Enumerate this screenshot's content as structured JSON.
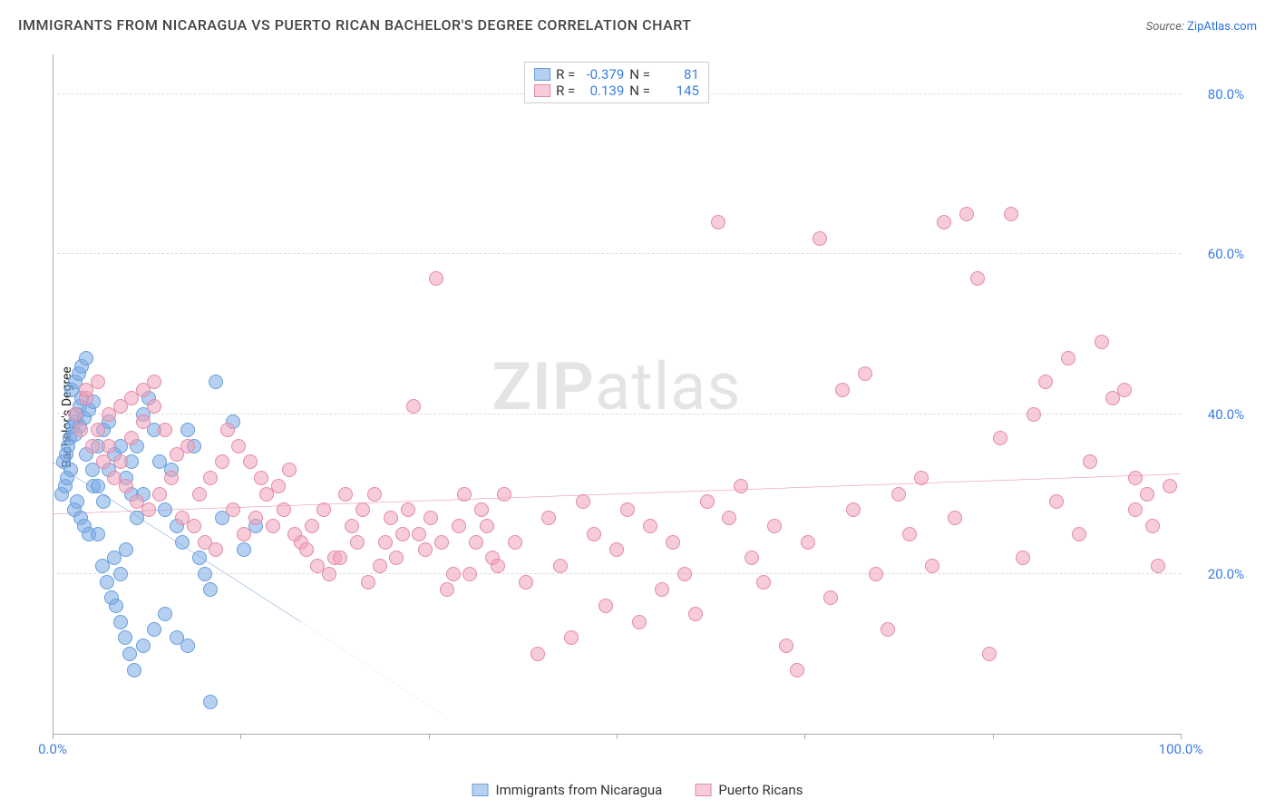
{
  "title": "IMMIGRANTS FROM NICARAGUA VS PUERTO RICAN BACHELOR'S DEGREE CORRELATION CHART",
  "source_label": "Source:",
  "source_name": "ZipAtlas.com",
  "watermark": {
    "bold": "ZIP",
    "rest": "atlas"
  },
  "chart": {
    "type": "scatter",
    "xlim": [
      0,
      100
    ],
    "ylim": [
      0,
      85
    ],
    "y_axis_label": "Bachelor's Degree",
    "y_ticks": [
      20,
      40,
      60,
      80
    ],
    "y_tick_labels": [
      "20.0%",
      "40.0%",
      "60.0%",
      "80.0%"
    ],
    "x_ticks": [
      0,
      16.67,
      33.33,
      50,
      66.67,
      83.33,
      100
    ],
    "x_tick_labels_shown": {
      "0": "0.0%",
      "100": "100.0%"
    },
    "grid_color": "#dddddd",
    "background_color": "#ffffff",
    "axis_color": "#aaaaaa",
    "tick_label_color": "#3b7ee0",
    "tick_label_fontsize": 15
  },
  "series": [
    {
      "id": "nicaragua",
      "label": "Immigrants from Nicaragua",
      "fill_color": "rgba(120,170,230,0.55)",
      "stroke_color": "#6a9fd8",
      "trend_color": "#1f5fbf",
      "trend_width": 2,
      "r_value": "-0.379",
      "n_value": "81",
      "trend": {
        "x1": 0,
        "y1": 34,
        "x2": 22,
        "y2": 14,
        "dash_to_x": 35,
        "dash_to_y": 2
      },
      "points": [
        [
          1.2,
          35
        ],
        [
          1.5,
          37
        ],
        [
          1.8,
          38.5
        ],
        [
          2.0,
          39
        ],
        [
          2.2,
          40
        ],
        [
          2.4,
          41
        ],
        [
          2.6,
          42
        ],
        [
          1.0,
          34
        ],
        [
          1.4,
          36
        ],
        [
          1.7,
          43
        ],
        [
          2.0,
          44
        ],
        [
          2.3,
          45
        ],
        [
          2.6,
          46
        ],
        [
          3.0,
          47
        ],
        [
          0.8,
          30
        ],
        [
          1.1,
          31
        ],
        [
          1.3,
          32
        ],
        [
          1.6,
          33
        ],
        [
          1.9,
          28
        ],
        [
          2.2,
          29
        ],
        [
          2.5,
          27
        ],
        [
          2.8,
          26
        ],
        [
          3.2,
          25
        ],
        [
          3.6,
          31
        ],
        [
          4.0,
          36
        ],
        [
          4.5,
          38
        ],
        [
          5.0,
          39
        ],
        [
          5.5,
          22
        ],
        [
          6.0,
          20
        ],
        [
          6.5,
          23
        ],
        [
          7.0,
          30
        ],
        [
          7.5,
          27
        ],
        [
          8.0,
          40
        ],
        [
          8.5,
          42
        ],
        [
          9.0,
          38
        ],
        [
          9.5,
          34
        ],
        [
          10.0,
          28
        ],
        [
          10.5,
          33
        ],
        [
          11.0,
          26
        ],
        [
          11.5,
          24
        ],
        [
          12.0,
          38
        ],
        [
          12.5,
          36
        ],
        [
          13.0,
          22
        ],
        [
          13.5,
          20
        ],
        [
          14.0,
          18
        ],
        [
          14.5,
          44
        ],
        [
          15.0,
          27
        ],
        [
          16.0,
          39
        ],
        [
          17.0,
          23
        ],
        [
          18.0,
          26
        ],
        [
          2.0,
          37.5
        ],
        [
          2.4,
          38.5
        ],
        [
          2.8,
          39.5
        ],
        [
          3.2,
          40.5
        ],
        [
          3.6,
          41.5
        ],
        [
          4.0,
          25
        ],
        [
          4.4,
          21
        ],
        [
          4.8,
          19
        ],
        [
          5.2,
          17
        ],
        [
          5.6,
          16
        ],
        [
          6.0,
          14
        ],
        [
          6.4,
          12
        ],
        [
          6.8,
          10
        ],
        [
          7.2,
          8
        ],
        [
          8.0,
          11
        ],
        [
          9.0,
          13
        ],
        [
          10.0,
          15
        ],
        [
          11.0,
          12
        ],
        [
          12.0,
          11
        ],
        [
          14.0,
          4
        ],
        [
          3.0,
          35
        ],
        [
          3.5,
          33
        ],
        [
          4.0,
          31
        ],
        [
          4.5,
          29
        ],
        [
          5.0,
          33
        ],
        [
          5.5,
          35
        ],
        [
          6.0,
          36
        ],
        [
          6.5,
          32
        ],
        [
          7.0,
          34
        ],
        [
          7.5,
          36
        ],
        [
          8.0,
          30
        ]
      ]
    },
    {
      "id": "puerto_rican",
      "label": "Puerto Ricans",
      "fill_color": "rgba(240,160,185,0.55)",
      "stroke_color": "#e08ca8",
      "trend_color": "#e04a80",
      "trend_width": 2,
      "r_value": "0.139",
      "n_value": "145",
      "trend": {
        "x1": 0,
        "y1": 27.5,
        "x2": 100,
        "y2": 32.5
      },
      "points": [
        [
          2,
          40
        ],
        [
          3,
          42
        ],
        [
          4,
          38
        ],
        [
          5,
          36
        ],
        [
          6,
          34
        ],
        [
          7,
          37
        ],
        [
          8,
          39
        ],
        [
          9,
          41
        ],
        [
          10,
          38
        ],
        [
          11,
          35
        ],
        [
          12,
          36
        ],
        [
          13,
          30
        ],
        [
          14,
          32
        ],
        [
          15,
          34
        ],
        [
          16,
          28
        ],
        [
          17,
          25
        ],
        [
          18,
          27
        ],
        [
          19,
          30
        ],
        [
          20,
          31
        ],
        [
          21,
          33
        ],
        [
          22,
          24
        ],
        [
          23,
          26
        ],
        [
          24,
          28
        ],
        [
          25,
          22
        ],
        [
          26,
          30
        ],
        [
          27,
          24
        ],
        [
          28,
          19
        ],
        [
          29,
          21
        ],
        [
          30,
          27
        ],
        [
          31,
          25
        ],
        [
          32,
          41
        ],
        [
          33,
          23
        ],
        [
          34,
          57
        ],
        [
          35,
          18
        ],
        [
          36,
          26
        ],
        [
          37,
          20
        ],
        [
          38,
          28
        ],
        [
          39,
          22
        ],
        [
          40,
          30
        ],
        [
          41,
          24
        ],
        [
          42,
          19
        ],
        [
          43,
          10
        ],
        [
          44,
          27
        ],
        [
          45,
          21
        ],
        [
          46,
          12
        ],
        [
          47,
          29
        ],
        [
          48,
          25
        ],
        [
          49,
          16
        ],
        [
          50,
          23
        ],
        [
          51,
          28
        ],
        [
          52,
          14
        ],
        [
          53,
          26
        ],
        [
          54,
          18
        ],
        [
          55,
          24
        ],
        [
          56,
          20
        ],
        [
          57,
          15
        ],
        [
          58,
          29
        ],
        [
          59,
          64
        ],
        [
          60,
          27
        ],
        [
          61,
          31
        ],
        [
          62,
          22
        ],
        [
          63,
          19
        ],
        [
          64,
          26
        ],
        [
          65,
          11
        ],
        [
          66,
          8
        ],
        [
          67,
          24
        ],
        [
          68,
          62
        ],
        [
          69,
          17
        ],
        [
          70,
          43
        ],
        [
          71,
          28
        ],
        [
          72,
          45
        ],
        [
          73,
          20
        ],
        [
          74,
          13
        ],
        [
          75,
          30
        ],
        [
          76,
          25
        ],
        [
          77,
          32
        ],
        [
          78,
          21
        ],
        [
          79,
          64
        ],
        [
          80,
          27
        ],
        [
          81,
          65
        ],
        [
          82,
          57
        ],
        [
          83,
          10
        ],
        [
          84,
          37
        ],
        [
          85,
          65
        ],
        [
          86,
          22
        ],
        [
          87,
          40
        ],
        [
          88,
          44
        ],
        [
          89,
          29
        ],
        [
          90,
          47
        ],
        [
          91,
          25
        ],
        [
          92,
          34
        ],
        [
          93,
          49
        ],
        [
          94,
          42
        ],
        [
          95,
          43
        ],
        [
          96,
          28
        ],
        [
          97,
          30
        ],
        [
          98,
          21
        ],
        [
          99,
          31
        ],
        [
          97.5,
          26
        ],
        [
          96,
          32
        ],
        [
          3,
          43
        ],
        [
          4,
          44
        ],
        [
          5,
          40
        ],
        [
          6,
          41
        ],
        [
          7,
          42
        ],
        [
          8,
          43
        ],
        [
          9,
          44
        ],
        [
          2.5,
          38
        ],
        [
          3.5,
          36
        ],
        [
          4.5,
          34
        ],
        [
          5.5,
          32
        ],
        [
          6.5,
          31
        ],
        [
          7.5,
          29
        ],
        [
          8.5,
          28
        ],
        [
          9.5,
          30
        ],
        [
          10.5,
          32
        ],
        [
          11.5,
          27
        ],
        [
          12.5,
          26
        ],
        [
          13.5,
          24
        ],
        [
          14.5,
          23
        ],
        [
          15.5,
          38
        ],
        [
          16.5,
          36
        ],
        [
          17.5,
          34
        ],
        [
          18.5,
          32
        ],
        [
          19.5,
          26
        ],
        [
          20.5,
          28
        ],
        [
          21.5,
          25
        ],
        [
          22.5,
          23
        ],
        [
          23.5,
          21
        ],
        [
          24.5,
          20
        ],
        [
          25.5,
          22
        ],
        [
          26.5,
          26
        ],
        [
          27.5,
          28
        ],
        [
          28.5,
          30
        ],
        [
          29.5,
          24
        ],
        [
          30.5,
          22
        ],
        [
          31.5,
          28
        ],
        [
          32.5,
          25
        ],
        [
          33.5,
          27
        ],
        [
          34.5,
          24
        ],
        [
          35.5,
          20
        ],
        [
          36.5,
          30
        ],
        [
          37.5,
          24
        ],
        [
          38.5,
          26
        ],
        [
          39.5,
          21
        ]
      ]
    }
  ],
  "legend_top": {
    "r_label": "R =",
    "n_label": "N ="
  }
}
